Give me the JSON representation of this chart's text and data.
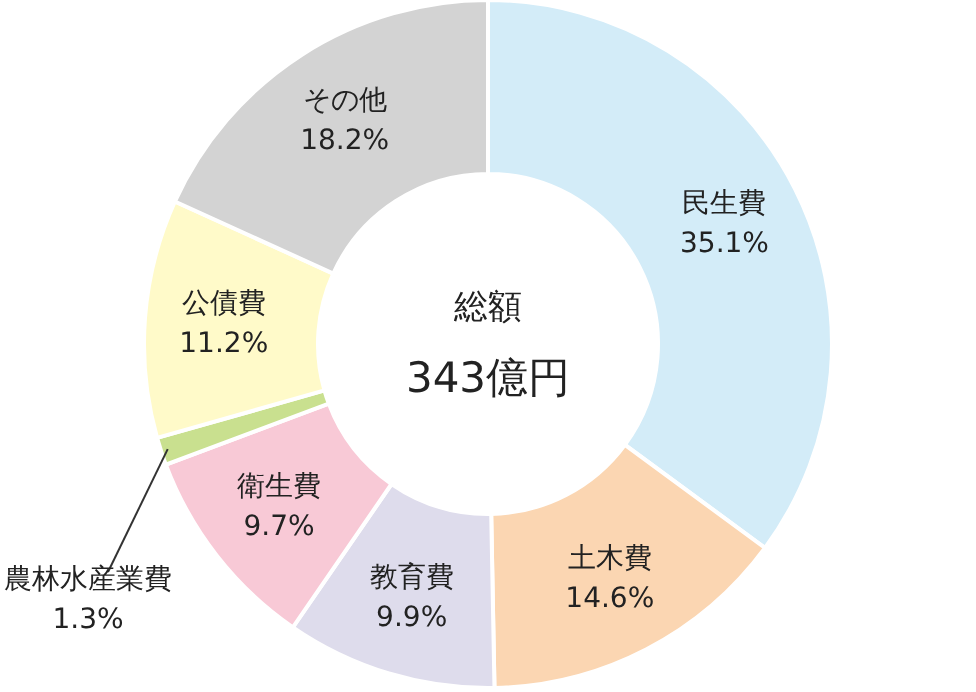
{
  "chart_data": {
    "type": "donut",
    "categories": [
      "民生費",
      "土木費",
      "教育費",
      "衛生費",
      "農林水産業費",
      "公債費",
      "その他"
    ],
    "values": [
      35.1,
      14.6,
      9.9,
      9.7,
      1.3,
      11.2,
      18.2
    ],
    "value_labels": [
      "35.1%",
      "14.6%",
      "9.9%",
      "9.7%",
      "1.3%",
      "11.2%",
      "18.2%"
    ],
    "colors": [
      "#d3ecf8",
      "#fbd6b2",
      "#dedcec",
      "#f8c9d6",
      "#c9e08f",
      "#fffac9",
      "#d3d3d3"
    ],
    "annotations": [
      "総額",
      "343億円"
    ]
  }
}
